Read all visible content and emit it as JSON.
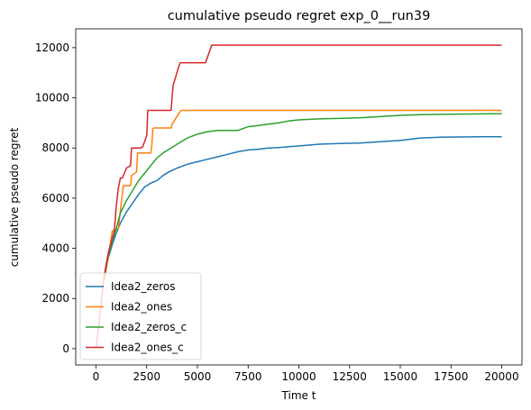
{
  "chart_data": {
    "type": "line",
    "title": "cumulative pseudo regret exp_0__run39",
    "xlabel": "Time t",
    "ylabel": "cumulative pseudo regret",
    "xlim": [
      -1000,
      21000
    ],
    "ylim": [
      -650,
      12750
    ],
    "xticks": [
      0,
      2500,
      5000,
      7500,
      10000,
      12500,
      15000,
      17500,
      20000
    ],
    "xtick_labels": [
      "0",
      "2500",
      "5000",
      "7500",
      "10000",
      "12500",
      "15000",
      "17500",
      "20000"
    ],
    "yticks": [
      0,
      2000,
      4000,
      6000,
      8000,
      10000,
      12000
    ],
    "ytick_labels": [
      "0",
      "2000",
      "4000",
      "6000",
      "8000",
      "10000",
      "12000"
    ],
    "grid": false,
    "legend_position": "lower-left",
    "series": [
      {
        "name": "Idea2_zeros",
        "color": "#1f77b4",
        "x": [
          400,
          600,
          800,
          1000,
          1200,
          1500,
          1800,
          2100,
          2400,
          2700,
          3000,
          3300,
          3600,
          4000,
          4500,
          5000,
          5500,
          6000,
          6500,
          7000,
          7500,
          8000,
          8500,
          9000,
          9500,
          10000,
          11000,
          12000,
          13000,
          14000,
          15000,
          16000,
          17000,
          18000,
          19000,
          20000
        ],
        "values": [
          2900,
          3600,
          4150,
          4600,
          5000,
          5450,
          5800,
          6150,
          6450,
          6600,
          6700,
          6900,
          7050,
          7200,
          7350,
          7450,
          7550,
          7650,
          7750,
          7850,
          7920,
          7950,
          8000,
          8020,
          8050,
          8080,
          8150,
          8180,
          8200,
          8250,
          8300,
          8400,
          8430,
          8440,
          8450,
          8450
        ]
      },
      {
        "name": "Idea2_ones",
        "color": "#ff7f0e",
        "x": [
          400,
          600,
          800,
          900,
          1100,
          1300,
          1350,
          1700,
          1750,
          2000,
          2050,
          2700,
          2750,
          2800,
          2850,
          3700,
          3750,
          4100,
          4200,
          20000
        ],
        "values": [
          2700,
          3600,
          4700,
          4700,
          4800,
          6200,
          6500,
          6500,
          6900,
          7050,
          7800,
          7800,
          8100,
          8750,
          8800,
          8800,
          8950,
          9400,
          9500,
          9500
        ]
      },
      {
        "name": "Idea2_zeros_c",
        "color": "#2ca02c",
        "x": [
          400,
          600,
          800,
          1000,
          1200,
          1500,
          1800,
          2100,
          2400,
          2700,
          3000,
          3300,
          3600,
          4000,
          4500,
          5000,
          5500,
          6000,
          6500,
          7000,
          7500,
          8000,
          8500,
          9000,
          9500,
          10000,
          11000,
          12000,
          13000,
          14000,
          15000,
          16000,
          17000,
          18000,
          19000,
          20000
        ],
        "values": [
          2800,
          3700,
          4300,
          4800,
          5400,
          5900,
          6300,
          6700,
          7000,
          7300,
          7600,
          7800,
          7950,
          8150,
          8400,
          8550,
          8650,
          8700,
          8700,
          8700,
          8850,
          8900,
          8950,
          9000,
          9080,
          9120,
          9160,
          9180,
          9200,
          9250,
          9300,
          9330,
          9340,
          9350,
          9360,
          9370
        ]
      },
      {
        "name": "Idea2_ones_c",
        "color": "#d62728",
        "x": [
          0,
          200,
          400,
          600,
          800,
          900,
          1000,
          1100,
          1200,
          1300,
          1500,
          1700,
          1750,
          2200,
          2300,
          2500,
          2550,
          3700,
          3800,
          4100,
          4150,
          5400,
          5700,
          5800,
          20000
        ],
        "values": [
          0,
          1400,
          2900,
          3800,
          4400,
          4700,
          5700,
          6400,
          6800,
          6800,
          7200,
          7300,
          8000,
          8000,
          8050,
          8500,
          9500,
          9500,
          10500,
          11300,
          11400,
          11400,
          12100,
          12100,
          12100
        ]
      }
    ]
  }
}
